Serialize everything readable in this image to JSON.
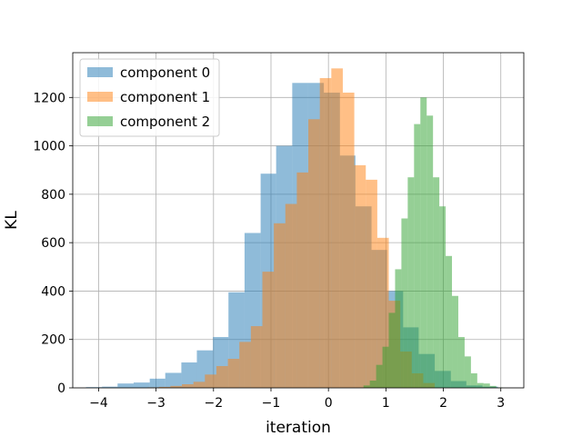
{
  "chart_data": {
    "type": "histogram",
    "title": "",
    "xlabel": "iteration",
    "ylabel": "KL",
    "xlim": [
      -4.45,
      3.4
    ],
    "ylim": [
      0,
      1385
    ],
    "xticks": [
      -4,
      -3,
      -2,
      -1,
      0,
      1,
      2,
      3
    ],
    "xtick_labels": [
      "−4",
      "−3",
      "−2",
      "−1",
      "0",
      "1",
      "2",
      "3"
    ],
    "yticks": [
      0,
      200,
      400,
      600,
      800,
      1000,
      1200
    ],
    "ytick_labels": [
      "0",
      "200",
      "400",
      "600",
      "800",
      "1000",
      "1200"
    ],
    "grid": true,
    "legend_position": "top-left",
    "series": [
      {
        "name": "component 0",
        "color": "#1f77b4",
        "alpha": 0.5,
        "bin_edges": [
          -4.22,
          -3.94,
          -3.67,
          -3.39,
          -3.11,
          -2.84,
          -2.56,
          -2.29,
          -2.01,
          -1.74,
          -1.46,
          -1.18,
          -0.91,
          -0.63,
          -0.36,
          -0.08,
          0.2,
          0.47,
          0.75,
          1.02,
          1.3,
          1.57,
          1.85,
          2.13,
          2.4,
          2.68,
          2.95
        ],
        "counts": [
          3,
          5,
          18,
          22,
          38,
          62,
          105,
          155,
          210,
          395,
          640,
          885,
          1000,
          1260,
          1260,
          1220,
          960,
          750,
          570,
          400,
          250,
          140,
          70,
          28,
          10,
          5
        ]
      },
      {
        "name": "component 1",
        "color": "#ff7f0e",
        "alpha": 0.5,
        "bin_edges": [
          -3.15,
          -2.95,
          -2.75,
          -2.55,
          -2.35,
          -2.15,
          -1.95,
          -1.75,
          -1.55,
          -1.35,
          -1.15,
          -0.95,
          -0.75,
          -0.55,
          -0.35,
          -0.15,
          0.05,
          0.25,
          0.45,
          0.65,
          0.85,
          1.05,
          1.25,
          1.45,
          1.65,
          1.85
        ],
        "counts": [
          2,
          4,
          8,
          15,
          25,
          55,
          90,
          120,
          190,
          255,
          480,
          680,
          760,
          890,
          1110,
          1280,
          1320,
          1220,
          920,
          860,
          620,
          360,
          150,
          60,
          20
        ]
      },
      {
        "name": "component 2",
        "color": "#2ca02c",
        "alpha": 0.5,
        "bin_edges": [
          0.61,
          0.72,
          0.83,
          0.94,
          1.05,
          1.16,
          1.27,
          1.38,
          1.49,
          1.6,
          1.71,
          1.82,
          1.93,
          2.04,
          2.15,
          2.26,
          2.37,
          2.48,
          2.59,
          2.7,
          2.81,
          2.92,
          3.03
        ],
        "counts": [
          10,
          30,
          95,
          170,
          310,
          490,
          700,
          870,
          1090,
          1200,
          1125,
          870,
          750,
          545,
          380,
          210,
          130,
          60,
          20,
          18,
          8,
          2
        ]
      }
    ]
  }
}
